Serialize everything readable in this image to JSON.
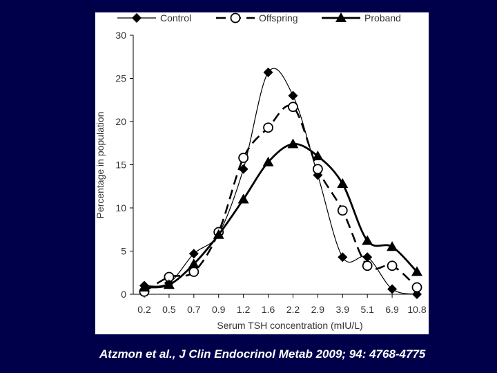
{
  "citation": "Atzmon et al., J Clin Endocrinol Metab 2009; 94: 4768-4775",
  "colors": {
    "background": "#00004a",
    "panel": "#ffffff",
    "ink": "#000000",
    "citation_text": "#ffffff"
  },
  "chart_data": {
    "type": "line",
    "title": "",
    "xlabel": "Serum TSH concentration (mIU/L)",
    "ylabel": "Percentage in population",
    "categories": [
      "0.2",
      "0.5",
      "0.7",
      "0.9",
      "1.2",
      "1.6",
      "2.2",
      "2.9",
      "3.9",
      "5.1",
      "6.9",
      "10.8"
    ],
    "ylim": [
      0,
      30
    ],
    "yticks": [
      "0",
      "5",
      "10",
      "15",
      "20",
      "25",
      "30"
    ],
    "grid": false,
    "legend_position": "top",
    "series": [
      {
        "name": "Control",
        "marker": "diamond",
        "line": "thin",
        "values": [
          1.0,
          1.3,
          4.7,
          7.0,
          14.5,
          25.7,
          23.0,
          13.8,
          4.3,
          4.3,
          0.6,
          0.0
        ]
      },
      {
        "name": "Offspring",
        "marker": "circle",
        "line": "dashed",
        "values": [
          0.3,
          2.0,
          2.6,
          7.2,
          15.8,
          19.3,
          21.7,
          14.5,
          9.7,
          3.3,
          3.3,
          0.8
        ]
      },
      {
        "name": "Proband",
        "marker": "triangle",
        "line": "thick",
        "values": [
          0.8,
          1.1,
          3.5,
          6.9,
          11.0,
          15.3,
          17.4,
          16.0,
          12.8,
          6.2,
          5.5,
          2.6
        ]
      }
    ]
  }
}
